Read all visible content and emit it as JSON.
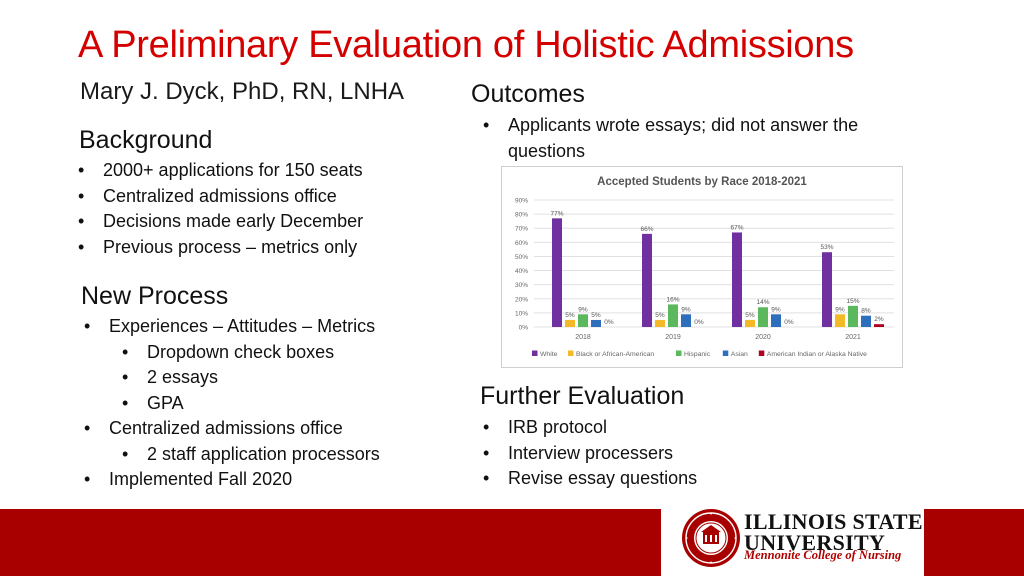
{
  "slide": {
    "title": "A Preliminary Evaluation of Holistic Admissions",
    "author": "Mary J. Dyck, PhD, RN, LNHA"
  },
  "background": {
    "heading": "Background",
    "items": [
      "2000+ applications for 150 seats",
      "Centralized admissions office",
      "Decisions made early December",
      "Previous process – metrics only"
    ]
  },
  "new_process": {
    "heading": "New Process",
    "items": [
      {
        "level": 1,
        "text": "Experiences – Attitudes – Metrics"
      },
      {
        "level": 2,
        "text": "Dropdown check boxes"
      },
      {
        "level": 2,
        "text": "2 essays"
      },
      {
        "level": 2,
        "text": "GPA"
      },
      {
        "level": 1,
        "text": "Centralized admissions office"
      },
      {
        "level": 2,
        "text": "2 staff application processors"
      },
      {
        "level": 1,
        "text": "Implemented Fall 2020"
      }
    ]
  },
  "outcomes": {
    "heading": "Outcomes",
    "items": [
      "Applicants wrote essays; did not answer the",
      "questions"
    ]
  },
  "further_evaluation": {
    "heading": "Further Evaluation",
    "items": [
      "IRB protocol",
      "Interview processers",
      "Revise essay questions"
    ]
  },
  "bullet_glyph": "•",
  "logo": {
    "line1": "ILLINOIS STATE",
    "line2": "UNIVERSITY",
    "line3": "Mennonite College of Nursing",
    "seal_icon": "university-seal-icon"
  },
  "colors": {
    "title": "#d40000",
    "footer": "#a80000"
  },
  "chart_data": {
    "type": "bar",
    "title": "Accepted Students by Race 2018-2021",
    "categories": [
      "2018",
      "2019",
      "2020",
      "2021"
    ],
    "ylim": [
      0,
      90
    ],
    "yticks": [
      "0%",
      "10%",
      "20%",
      "30%",
      "40%",
      "50%",
      "60%",
      "70%",
      "80%",
      "90%"
    ],
    "grid": true,
    "legend_position": "bottom",
    "series": [
      {
        "name": "White",
        "color": "#7030a0",
        "values": [
          77,
          66,
          67,
          53
        ],
        "labels": [
          "77%",
          "66%",
          "67%",
          "53%"
        ]
      },
      {
        "name": "Black or African-American",
        "color": "#f4b929",
        "values": [
          5,
          5,
          5,
          9
        ],
        "labels": [
          "5%",
          "5%",
          "5%",
          "9%"
        ]
      },
      {
        "name": "Hispanic",
        "color": "#5cb85c",
        "values": [
          9,
          16,
          14,
          15
        ],
        "labels": [
          "9%",
          "16%",
          "14%",
          "15%"
        ]
      },
      {
        "name": "Asian",
        "color": "#2e6fbd",
        "values": [
          5,
          9,
          9,
          8
        ],
        "labels": [
          "5%",
          "9%",
          "9%",
          "8%"
        ]
      },
      {
        "name": "American Indian or Alaska Native",
        "color": "#b00020",
        "values": [
          0,
          0,
          0,
          2
        ],
        "labels": [
          "0%",
          "0%",
          "0%",
          "2%"
        ]
      }
    ]
  }
}
